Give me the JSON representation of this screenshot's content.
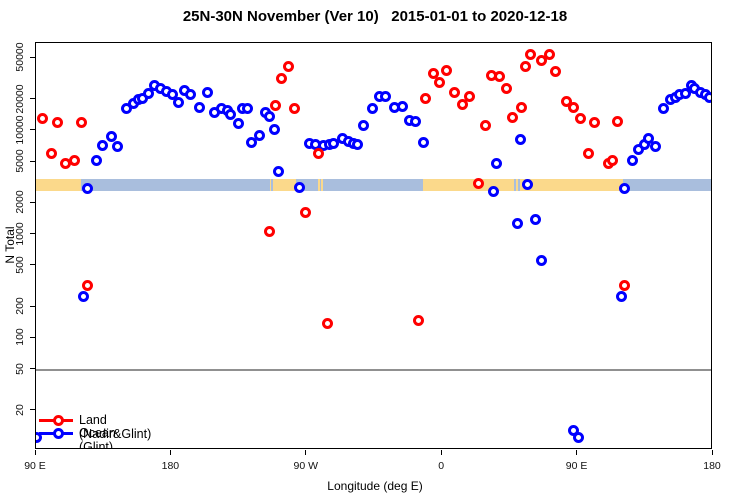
{
  "title": "25N-30N November (Ver 10)   2015-01-01 to 2020-12-18",
  "axes": {
    "y": {
      "label": "N Total",
      "scale": "log",
      "ticks": [
        20,
        50,
        100,
        200,
        500,
        1000,
        2000,
        5000,
        10000,
        20000,
        50000
      ]
    },
    "x": {
      "label": "Longitude (deg E)",
      "range_deg": [
        90,
        540
      ],
      "ticks": [
        {
          "deg": 90,
          "label": "90 E"
        },
        {
          "deg": 180,
          "label": "180"
        },
        {
          "deg": 270,
          "label": "90 W"
        },
        {
          "deg": 360,
          "label": "0"
        },
        {
          "deg": 450,
          "label": "90 E"
        },
        {
          "deg": 540,
          "label": "180"
        }
      ]
    }
  },
  "reference_line_value": 50,
  "colors": {
    "land": "#ff0000",
    "ocean": "#0000ff",
    "band_land": "#fbd98b",
    "band_ocean": "#a9bedd",
    "reference_line": "#909090",
    "axis": "#000000"
  },
  "legend": {
    "items": [
      {
        "label": "Land (Nadir&Glint)",
        "series": "land"
      },
      {
        "label": "Ocean (Glint)",
        "series": "ocean"
      }
    ]
  },
  "surface_band": {
    "description": "land/ocean surface-type strip drawn across the plot near N=3000",
    "segments": [
      {
        "from": 90,
        "to": 120,
        "surface": "land"
      },
      {
        "from": 120,
        "to": 245.3,
        "surface": "ocean"
      },
      {
        "from": 245.3,
        "to": 246.3,
        "surface": "land"
      },
      {
        "from": 246.3,
        "to": 247.6,
        "surface": "ocean"
      },
      {
        "from": 247.6,
        "to": 263,
        "surface": "land"
      },
      {
        "from": 263,
        "to": 277.5,
        "surface": "ocean"
      },
      {
        "from": 277.5,
        "to": 278.5,
        "surface": "land"
      },
      {
        "from": 278.5,
        "to": 279.5,
        "surface": "ocean"
      },
      {
        "from": 279.5,
        "to": 281,
        "surface": "land"
      },
      {
        "from": 281,
        "to": 347,
        "surface": "ocean"
      },
      {
        "from": 347,
        "to": 407.5,
        "surface": "land"
      },
      {
        "from": 407.5,
        "to": 408.8,
        "surface": "ocean"
      },
      {
        "from": 408.8,
        "to": 410.2,
        "surface": "land"
      },
      {
        "from": 410.2,
        "to": 411.5,
        "surface": "ocean"
      },
      {
        "from": 411.5,
        "to": 480,
        "surface": "land"
      },
      {
        "from": 480,
        "to": 540,
        "surface": "ocean"
      }
    ]
  },
  "chart_data": {
    "type": "scatter",
    "title": "25N-30N November (Ver 10)   2015-01-01 to 2020-12-18",
    "xlabel": "Longitude (deg E)",
    "ylabel": "N Total",
    "x_range": [
      90,
      540
    ],
    "y_scale": "log",
    "y_ticks": [
      20,
      50,
      100,
      200,
      500,
      1000,
      2000,
      5000,
      10000,
      20000,
      50000
    ],
    "legend_position": "bottom-left",
    "series": [
      {
        "name": "Land (Nadir&Glint)",
        "color": "#ff0000",
        "points": [
          [
            94,
            13100
          ],
          [
            100.5,
            6100
          ],
          [
            104.5,
            12000
          ],
          [
            109.5,
            4800
          ],
          [
            115.5,
            5200
          ],
          [
            120,
            12000
          ],
          [
            124,
            320
          ],
          [
            245,
            1070
          ],
          [
            249,
            17500
          ],
          [
            253.5,
            32000
          ],
          [
            258,
            41800
          ],
          [
            262,
            16400
          ],
          [
            269,
            1640
          ],
          [
            278,
            6100
          ],
          [
            283.5,
            140
          ],
          [
            344.5,
            150
          ],
          [
            349,
            20500
          ],
          [
            354,
            35800
          ],
          [
            358,
            29300
          ],
          [
            363,
            38300
          ],
          [
            368,
            23400
          ],
          [
            373.5,
            17900
          ],
          [
            378,
            21400
          ],
          [
            384,
            3130
          ],
          [
            388.5,
            11200
          ],
          [
            393,
            34200
          ],
          [
            398,
            33400
          ],
          [
            402.5,
            25600
          ],
          [
            407,
            13400
          ],
          [
            413,
            16700
          ],
          [
            415.5,
            41500
          ],
          [
            419,
            53800
          ],
          [
            426,
            47800
          ],
          [
            431,
            54900
          ],
          [
            435.5,
            37000
          ],
          [
            442.5,
            19200
          ],
          [
            447,
            16700
          ],
          [
            452,
            13100
          ],
          [
            457,
            6100
          ],
          [
            461,
            12000
          ],
          [
            470.5,
            4800
          ],
          [
            473,
            5200
          ],
          [
            476.5,
            12200
          ],
          [
            481,
            320
          ]
        ]
      },
      {
        "name": "Ocean (Glint)",
        "color": "#0000ff",
        "points": [
          [
            90,
            11
          ],
          [
            121.5,
            256
          ],
          [
            124.5,
            2800
          ],
          [
            130,
            5120
          ],
          [
            134.5,
            7150
          ],
          [
            140,
            8750
          ],
          [
            144.5,
            7000
          ],
          [
            150,
            16400
          ],
          [
            154.5,
            18300
          ],
          [
            158,
            20000
          ],
          [
            161,
            20400
          ],
          [
            165,
            22900
          ],
          [
            168.5,
            27400
          ],
          [
            172.5,
            25600
          ],
          [
            176.5,
            23900
          ],
          [
            180.5,
            22400
          ],
          [
            184.5,
            18700
          ],
          [
            189,
            24400
          ],
          [
            192.5,
            22400
          ],
          [
            198.5,
            16700
          ],
          [
            204,
            23400
          ],
          [
            208.5,
            15000
          ],
          [
            213,
            16400
          ],
          [
            217,
            15600
          ],
          [
            219.5,
            14300
          ],
          [
            224.5,
            11700
          ],
          [
            227.5,
            16400
          ],
          [
            230.5,
            16400
          ],
          [
            233,
            7640
          ],
          [
            238.5,
            8930
          ],
          [
            242.5,
            15000
          ],
          [
            245,
            13700
          ],
          [
            248.5,
            10200
          ],
          [
            251.5,
            4090
          ],
          [
            265,
            2860
          ],
          [
            271.5,
            7480
          ],
          [
            276,
            7300
          ],
          [
            281,
            7150
          ],
          [
            285,
            7300
          ],
          [
            288,
            7480
          ],
          [
            293.5,
            8360
          ],
          [
            297.5,
            7820
          ],
          [
            301,
            7480
          ],
          [
            304,
            7300
          ],
          [
            308,
            11200
          ],
          [
            314,
            16400
          ],
          [
            318,
            21400
          ],
          [
            322.5,
            21400
          ],
          [
            328,
            16700
          ],
          [
            333.5,
            17100
          ],
          [
            338,
            12700
          ],
          [
            342,
            12400
          ],
          [
            347.5,
            7640
          ],
          [
            394,
            2610
          ],
          [
            396,
            4890
          ],
          [
            410,
            1280
          ],
          [
            412,
            8180
          ],
          [
            417,
            3060
          ],
          [
            422,
            1400
          ],
          [
            426,
            560
          ],
          [
            447.5,
            13
          ],
          [
            450.5,
            11
          ],
          [
            479,
            256
          ],
          [
            481.5,
            2800
          ],
          [
            486.5,
            5120
          ],
          [
            490.5,
            6670
          ],
          [
            494.5,
            7300
          ],
          [
            497,
            8360
          ],
          [
            501.5,
            7000
          ],
          [
            507,
            16400
          ],
          [
            511.5,
            20000
          ],
          [
            515,
            20900
          ],
          [
            518,
            22400
          ],
          [
            521.5,
            22900
          ],
          [
            525.5,
            27400
          ],
          [
            528,
            25600
          ],
          [
            531.5,
            23400
          ],
          [
            535,
            22400
          ],
          [
            537.5,
            20900
          ]
        ]
      }
    ]
  }
}
